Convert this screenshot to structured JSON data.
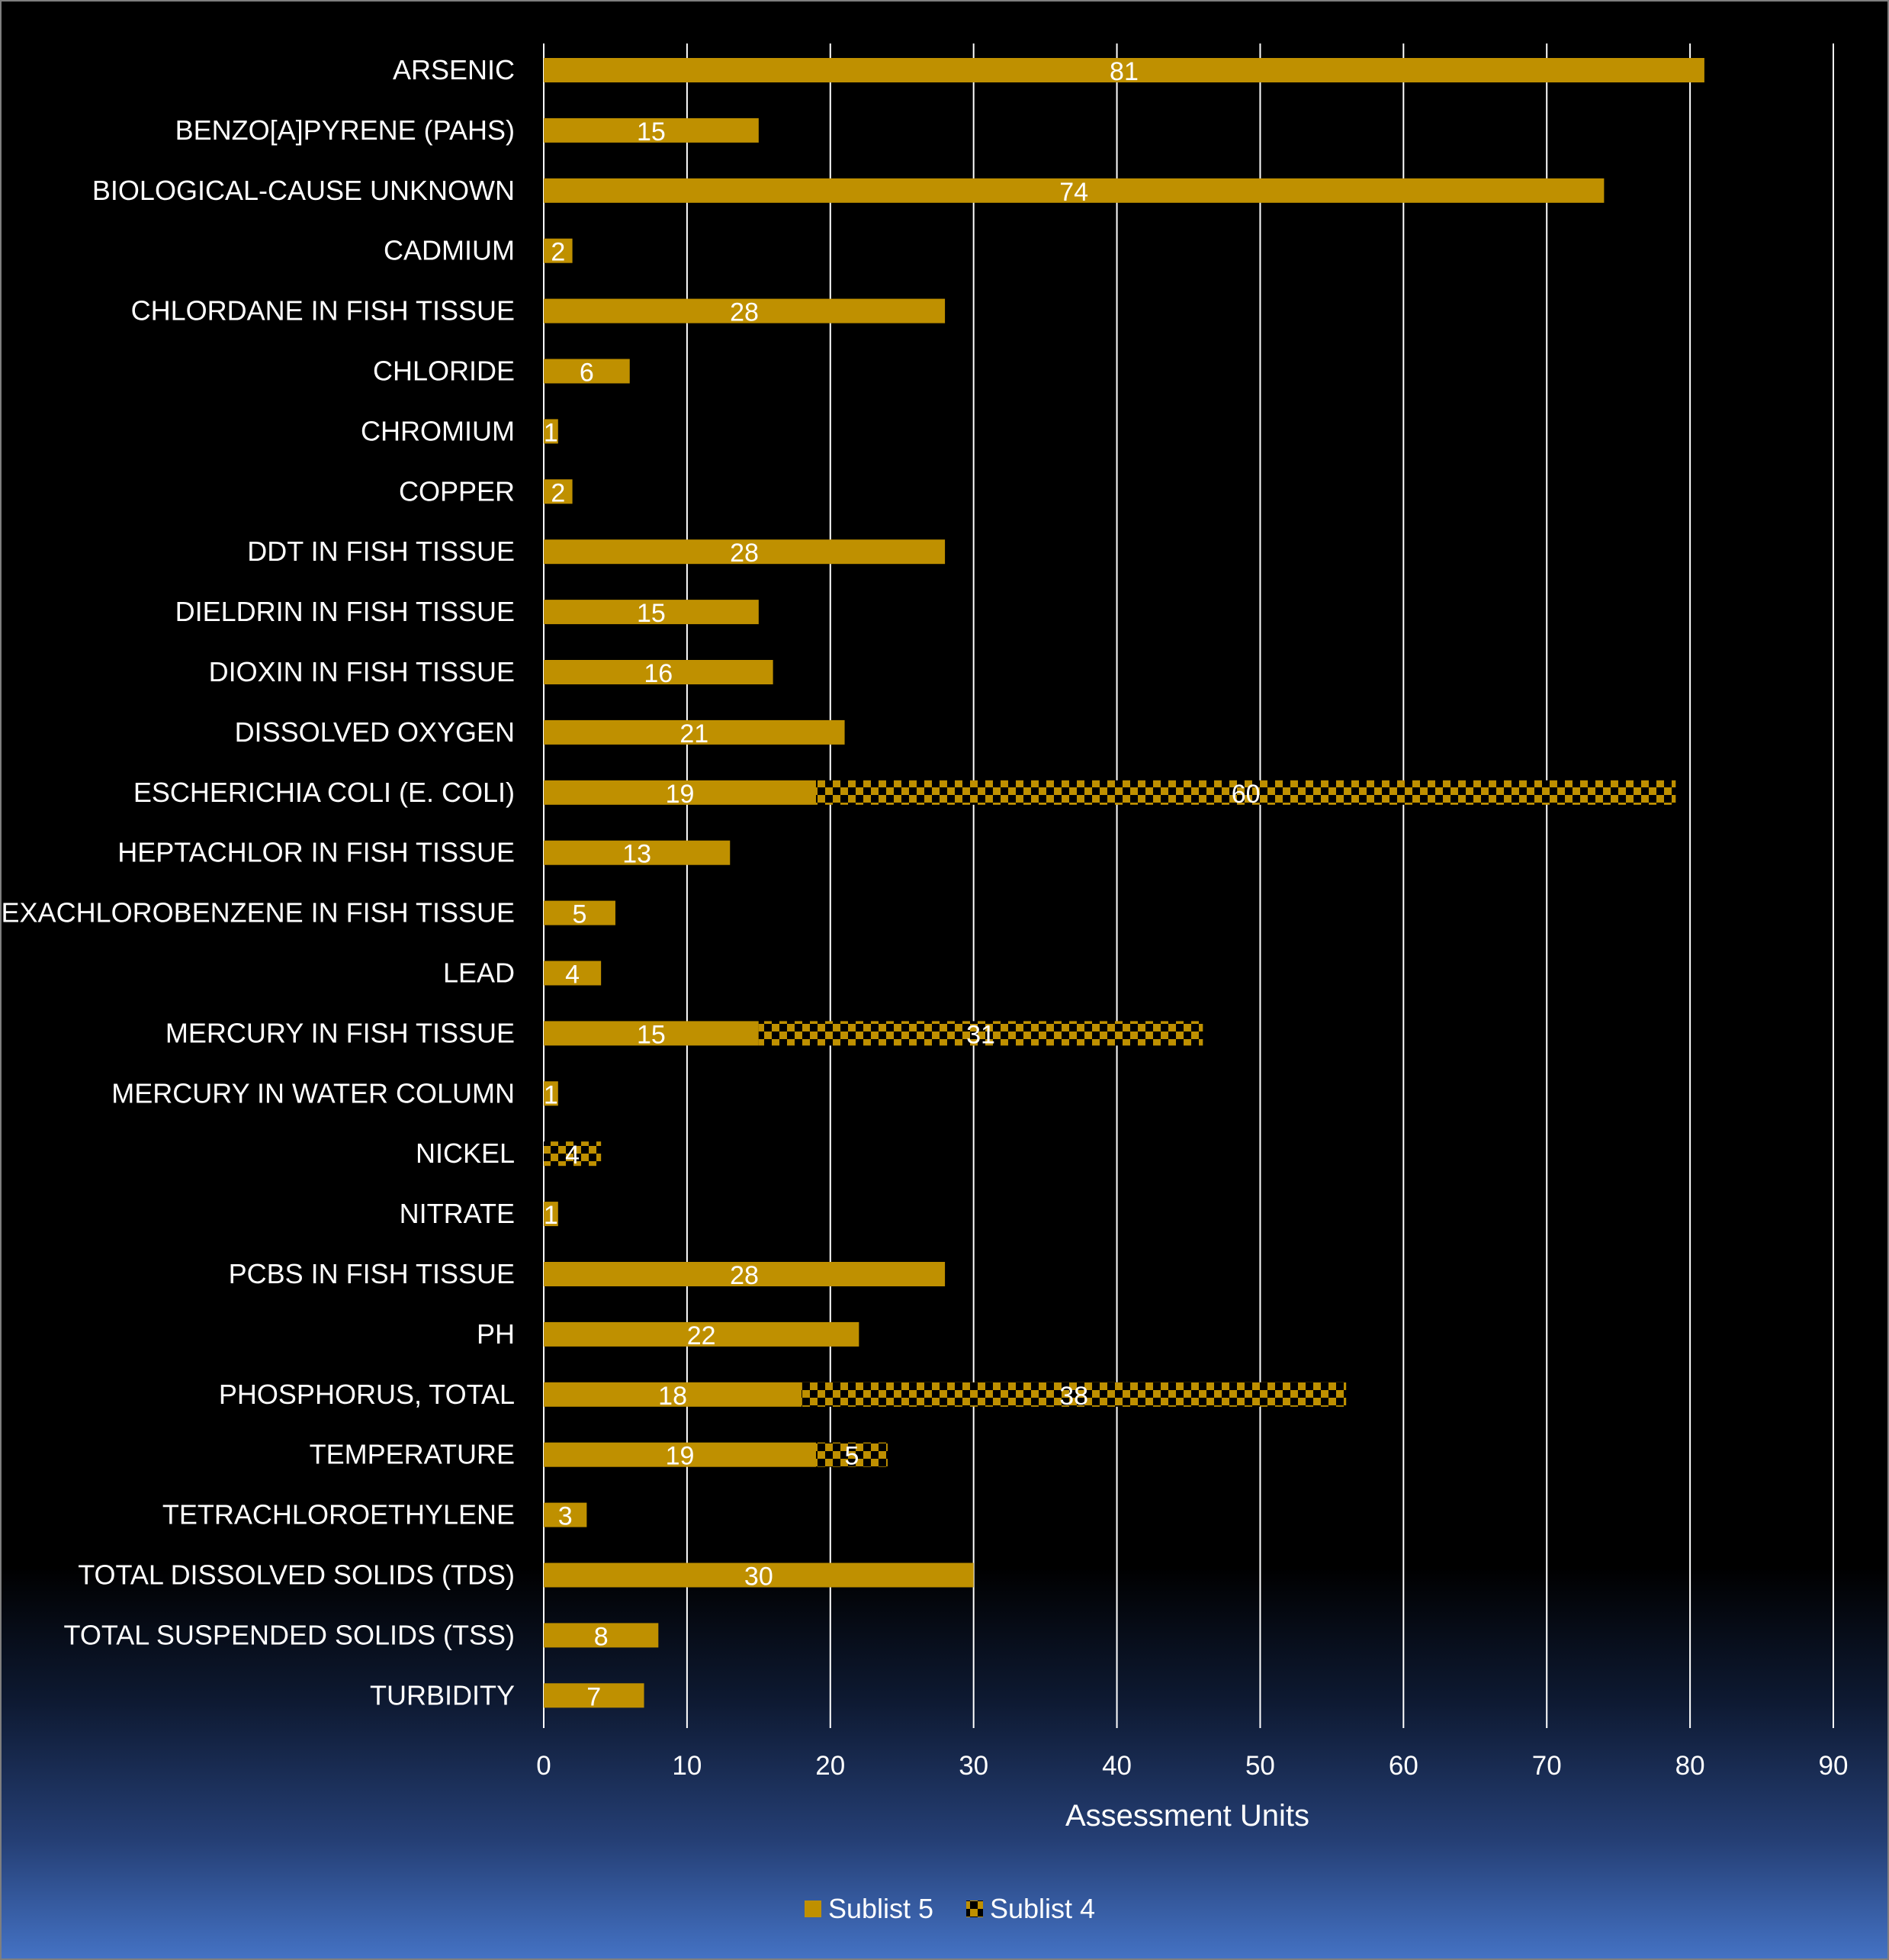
{
  "chart_data": {
    "type": "bar",
    "orientation": "horizontal",
    "stacked": true,
    "categories": [
      "ARSENIC",
      "BENZO[A]PYRENE (PAHS)",
      "BIOLOGICAL-CAUSE UNKNOWN",
      "CADMIUM",
      "CHLORDANE IN FISH TISSUE",
      "CHLORIDE",
      "CHROMIUM",
      "COPPER",
      "DDT IN FISH TISSUE",
      "DIELDRIN IN FISH TISSUE",
      "DIOXIN IN FISH TISSUE",
      "DISSOLVED OXYGEN",
      "ESCHERICHIA COLI (E. COLI)",
      "HEPTACHLOR IN FISH TISSUE",
      "HEXACHLOROBENZENE IN FISH TISSUE",
      "LEAD",
      "MERCURY IN FISH TISSUE",
      "MERCURY IN WATER COLUMN",
      "NICKEL",
      "NITRATE",
      "PCBS IN FISH TISSUE",
      "PH",
      "PHOSPHORUS, TOTAL",
      "TEMPERATURE",
      "TETRACHLOROETHYLENE",
      "TOTAL DISSOLVED SOLIDS (TDS)",
      "TOTAL SUSPENDED SOLIDS (TSS)",
      "TURBIDITY"
    ],
    "series": [
      {
        "name": "Sublist 5",
        "pattern": "solid",
        "color": "#bf9000",
        "values": [
          81,
          15,
          74,
          2,
          28,
          6,
          1,
          2,
          28,
          15,
          16,
          21,
          19,
          13,
          5,
          4,
          15,
          1,
          null,
          1,
          28,
          22,
          18,
          19,
          3,
          30,
          8,
          7
        ]
      },
      {
        "name": "Sublist 4",
        "pattern": "checker",
        "color": "#bf9000",
        "values": [
          null,
          null,
          null,
          null,
          null,
          null,
          null,
          null,
          null,
          null,
          null,
          null,
          60,
          null,
          null,
          null,
          31,
          null,
          4,
          null,
          null,
          null,
          38,
          5,
          null,
          null,
          null,
          null
        ]
      }
    ],
    "xlabel": "Assessment Units",
    "xlim": [
      0,
      90
    ],
    "xticks": [
      0,
      10,
      20,
      30,
      40,
      50,
      60,
      70,
      80,
      90
    ],
    "grid": true,
    "legend": "bottom-center"
  }
}
